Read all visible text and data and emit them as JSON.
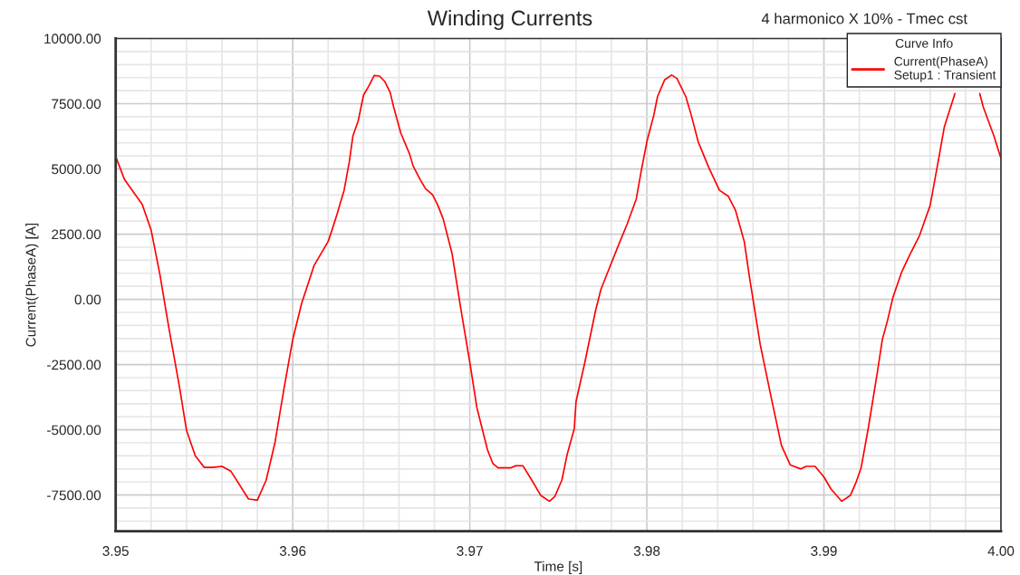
{
  "chart_data": {
    "type": "line",
    "title": "Winding Currents",
    "subtitle": "4 harmonico X 10% - Tmec cst",
    "xlabel": "Time [s]",
    "ylabel": "Current(PhaseA) [A]",
    "legend_title": "Curve Info",
    "xlim": [
      3.95,
      4.0
    ],
    "ylim": [
      -8890,
      10000
    ],
    "xticks": [
      {
        "value": 3.95,
        "label": "3.95"
      },
      {
        "value": 3.96,
        "label": "3.96"
      },
      {
        "value": 3.97,
        "label": "3.97"
      },
      {
        "value": 3.98,
        "label": "3.98"
      },
      {
        "value": 3.99,
        "label": "3.99"
      },
      {
        "value": 4.0,
        "label": "4.00"
      }
    ],
    "yticks": [
      {
        "value": -7500,
        "label": "-7500.00"
      },
      {
        "value": -5000,
        "label": "-5000.00"
      },
      {
        "value": -2500,
        "label": "-2500.00"
      },
      {
        "value": 0,
        "label": "0.00"
      },
      {
        "value": 2500,
        "label": "2500.00"
      },
      {
        "value": 5000,
        "label": "5000.00"
      },
      {
        "value": 7500,
        "label": "7500.00"
      },
      {
        "value": 10000,
        "label": "10000.00"
      }
    ],
    "grid": true,
    "legend": "top right",
    "marker": "none",
    "line_style": "solid",
    "series": [
      {
        "name": "Current(PhaseA)\nSetup1 : Transient",
        "color": "#ff0000",
        "x": [
          3.95,
          3.9505,
          3.9515,
          3.952,
          3.9525,
          3.953,
          3.9536,
          3.954,
          3.9545,
          3.955,
          3.9555,
          3.956,
          3.9565,
          3.9575,
          3.958,
          3.9585,
          3.959,
          3.9595,
          3.96,
          3.9605,
          3.9612,
          3.9615,
          3.962,
          3.9622,
          3.9625,
          3.9629,
          3.9632,
          3.9634,
          3.9637,
          3.964,
          3.9643,
          3.9646,
          3.9649,
          3.9652,
          3.9655,
          3.9657,
          3.9661,
          3.9666,
          3.9668,
          3.9672,
          3.9675,
          3.9679,
          3.9682,
          3.9685,
          3.969,
          3.9695,
          3.97,
          3.9704,
          3.9707,
          3.971,
          3.9713,
          3.9716,
          3.9723,
          3.9726,
          3.973,
          3.9735,
          3.974,
          3.9745,
          3.9748,
          3.9752,
          3.9755,
          3.9759,
          3.976,
          3.9765,
          3.9771,
          3.9774,
          3.9777,
          3.9784,
          3.9789,
          3.9794,
          3.9797,
          3.98,
          3.9804,
          3.9806,
          3.981,
          3.9814,
          3.9817,
          3.9822,
          3.9825,
          3.9829,
          3.9835,
          3.9841,
          3.9846,
          3.985,
          3.9855,
          3.9858,
          3.9864,
          3.987,
          3.9876,
          3.9881,
          3.9887,
          3.989,
          3.9895,
          3.99,
          3.9904,
          3.991,
          3.9915,
          3.9918,
          3.9921,
          3.9925,
          3.993,
          3.9933,
          3.9936,
          3.9939,
          3.9944,
          3.9948,
          3.9954,
          3.996,
          3.9965,
          3.9968,
          3.9974,
          3.9977,
          3.9988,
          3.999,
          3.9996,
          4.0
        ],
        "values": [
          5480,
          4590,
          3640,
          2660,
          945,
          -1080,
          -3340,
          -5020,
          -6000,
          -6440,
          -6440,
          -6400,
          -6580,
          -7650,
          -7700,
          -6930,
          -5480,
          -3450,
          -1540,
          -160,
          1290,
          1640,
          2220,
          2620,
          3260,
          4180,
          5290,
          6270,
          6850,
          7830,
          8180,
          8580,
          8560,
          8350,
          7940,
          7370,
          6380,
          5570,
          5110,
          4590,
          4240,
          4010,
          3600,
          3080,
          1750,
          -390,
          -2410,
          -4150,
          -4960,
          -5770,
          -6290,
          -6460,
          -6460,
          -6380,
          -6380,
          -6930,
          -7510,
          -7740,
          -7560,
          -6930,
          -5940,
          -4960,
          -3920,
          -2410,
          -440,
          370,
          890,
          2080,
          2910,
          3840,
          4990,
          6040,
          7080,
          7770,
          8410,
          8600,
          8470,
          7770,
          7080,
          6040,
          5050,
          4180,
          3950,
          3430,
          2220,
          830,
          -1720,
          -3690,
          -5600,
          -6350,
          -6500,
          -6400,
          -6400,
          -6810,
          -7270,
          -7740,
          -7510,
          -7040,
          -6460,
          -4960,
          -2870,
          -1540,
          -790,
          80,
          1060,
          1640,
          2450,
          3600,
          5460,
          6610,
          7890,
          null,
          7890,
          7370,
          6270,
          5400
        ]
      }
    ]
  }
}
